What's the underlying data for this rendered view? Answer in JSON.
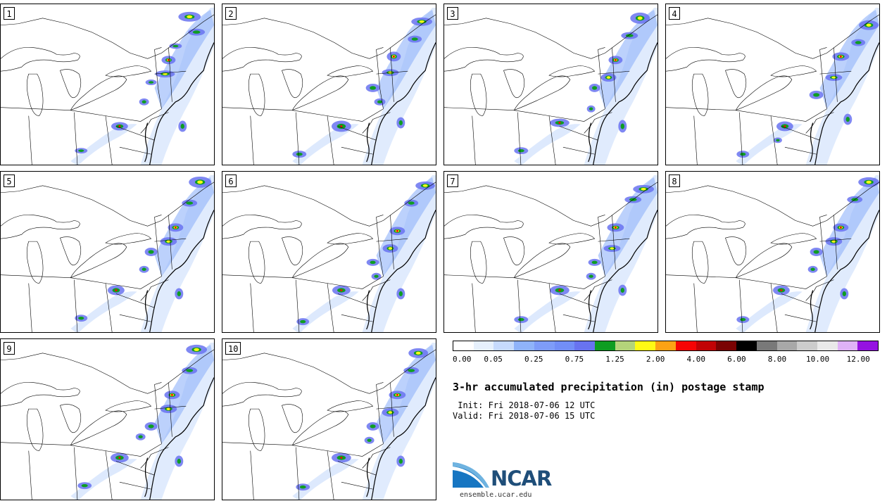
{
  "panels": [
    {
      "label": "1"
    },
    {
      "label": "2"
    },
    {
      "label": "3"
    },
    {
      "label": "4"
    },
    {
      "label": "5"
    },
    {
      "label": "6"
    },
    {
      "label": "7"
    },
    {
      "label": "8"
    },
    {
      "label": "9"
    },
    {
      "label": "10"
    }
  ],
  "colorbar": {
    "colors": [
      "#ffffff",
      "#e6f0fc",
      "#c6dafc",
      "#8fb3fa",
      "#7e9cf9",
      "#728ef7",
      "#6873f0",
      "#0e9d22",
      "#b4d47a",
      "#fffa14",
      "#fda214",
      "#f60404",
      "#c10305",
      "#7a0303",
      "#000000",
      "#797979",
      "#a8a8a8",
      "#cccccc",
      "#e9e9e9",
      "#dfb2f6",
      "#9512e1"
    ],
    "ticks": [
      "0.00",
      "0.05",
      "0.25",
      "0.75",
      "1.25",
      "2.00",
      "4.00",
      "6.00",
      "8.00",
      "10.00",
      "12.00"
    ]
  },
  "title": "3-hr accumulated precipitation (in) postage stamp",
  "init_line": " Init: Fri 2018-07-06 12 UTC",
  "valid_line": "Valid: Fri 2018-07-06 15 UTC",
  "logo": {
    "text": "NCAR",
    "url": "ensemble.ucar.edu"
  }
}
